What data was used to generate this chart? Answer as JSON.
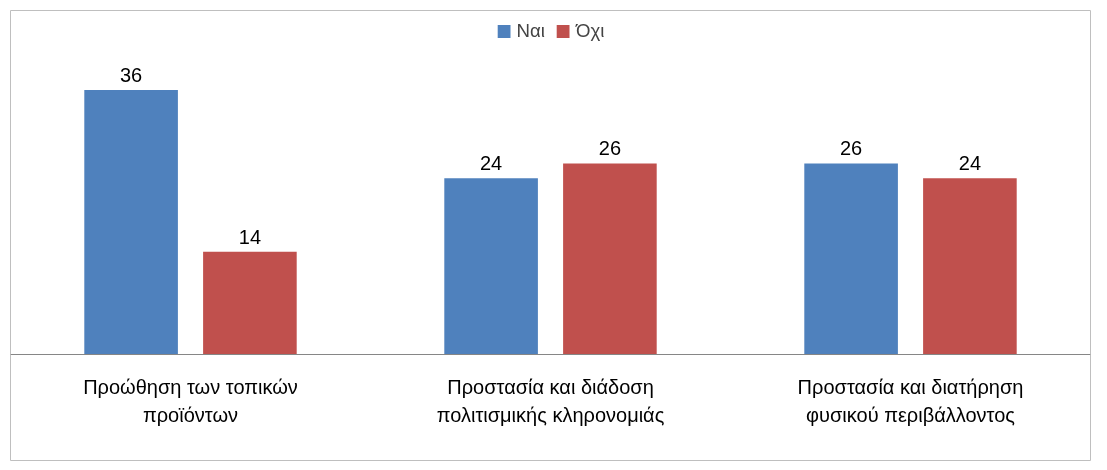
{
  "chart_data": {
    "type": "bar",
    "categories": [
      "Προώθηση των τοπικών προϊόντων",
      "Προστασία και διάδοση πολιτισμικής κληρονομιάς",
      "Προστασία και διατήρηση φυσικού περιβάλλοντος"
    ],
    "series": [
      {
        "name": "Ναι",
        "color": "#4f81bd",
        "values": [
          36,
          24,
          26
        ]
      },
      {
        "name": "Όχι",
        "color": "#c0504d",
        "values": [
          14,
          26,
          24
        ]
      }
    ],
    "data_labels": true,
    "legend": "top",
    "grid": false
  }
}
